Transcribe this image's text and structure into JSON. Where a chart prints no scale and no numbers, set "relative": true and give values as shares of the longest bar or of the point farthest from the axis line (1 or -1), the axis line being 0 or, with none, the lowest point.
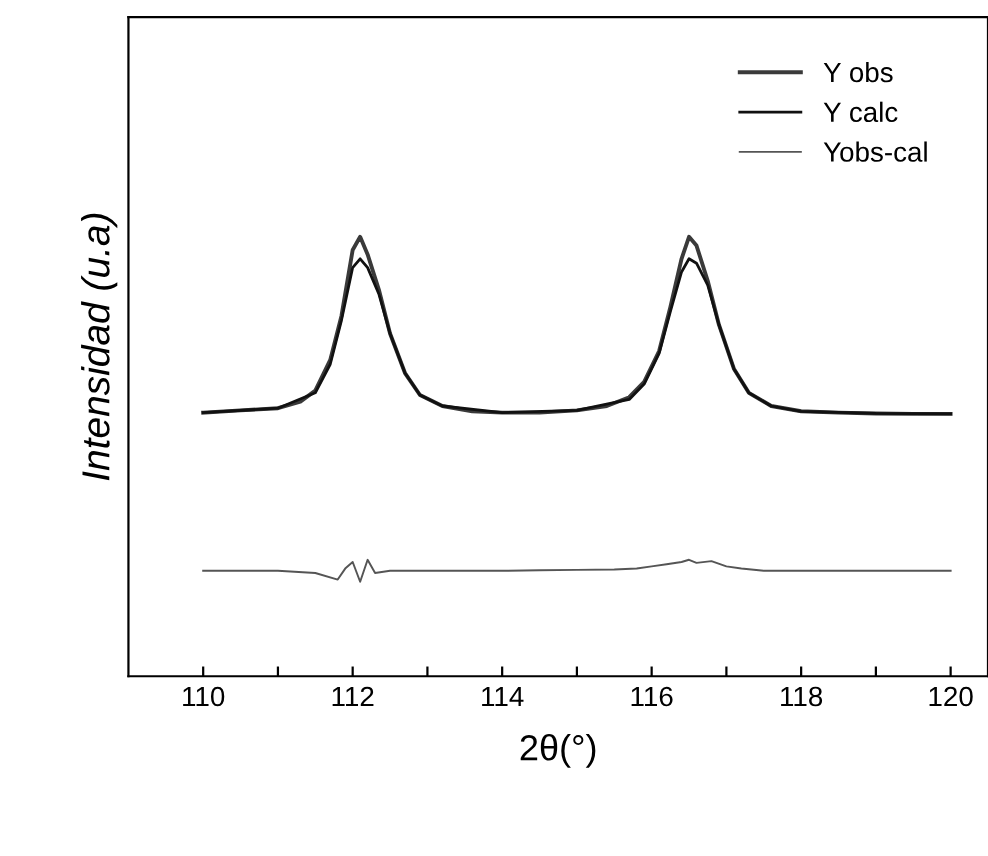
{
  "chart_data": {
    "type": "line",
    "xlabel": "2θ(°)",
    "ylabel": "Intensidad (u.a)",
    "relative": true,
    "xlim": [
      109,
      120.5
    ],
    "xticks": [
      110,
      {
        "value": 111,
        "label": null
      },
      112,
      {
        "value": 113,
        "label": null
      },
      114,
      {
        "value": 115,
        "label": null
      },
      116,
      {
        "value": 117,
        "label": null
      },
      118,
      {
        "value": 119,
        "label": null
      },
      120
    ],
    "legend": "top right",
    "grid": false,
    "marker": "none",
    "line_style": "solid",
    "series": [
      {
        "name": "Y obs",
        "color": "#3a3a3a",
        "x": [
          110.0,
          110.5,
          111.0,
          111.3,
          111.5,
          111.7,
          111.85,
          112.0,
          112.1,
          112.2,
          112.35,
          112.5,
          112.7,
          112.9,
          113.2,
          113.6,
          114.0,
          114.5,
          115.0,
          115.4,
          115.7,
          115.9,
          116.1,
          116.25,
          116.4,
          116.5,
          116.6,
          116.75,
          116.9,
          117.1,
          117.3,
          117.6,
          118.0,
          118.5,
          119.0,
          119.5,
          120.0
        ],
        "values": [
          0.6,
          0.605,
          0.61,
          0.625,
          0.65,
          0.72,
          0.82,
          0.97,
          1.0,
          0.96,
          0.88,
          0.78,
          0.69,
          0.64,
          0.615,
          0.603,
          0.6,
          0.6,
          0.605,
          0.615,
          0.635,
          0.67,
          0.74,
          0.84,
          0.95,
          1.0,
          0.98,
          0.9,
          0.8,
          0.7,
          0.645,
          0.615,
          0.603,
          0.6,
          0.598,
          0.597,
          0.597
        ]
      },
      {
        "name": "Y calc",
        "color": "#111111",
        "x": [
          110.0,
          111.0,
          111.5,
          111.7,
          111.85,
          112.0,
          112.1,
          112.2,
          112.35,
          112.5,
          112.7,
          112.9,
          113.2,
          114.0,
          115.0,
          115.7,
          115.9,
          116.1,
          116.25,
          116.4,
          116.5,
          116.6,
          116.75,
          116.9,
          117.1,
          117.3,
          117.6,
          118.0,
          119.0,
          120.0
        ],
        "values": [
          0.6,
          0.61,
          0.645,
          0.71,
          0.81,
          0.93,
          0.95,
          0.93,
          0.87,
          0.78,
          0.69,
          0.64,
          0.615,
          0.6,
          0.605,
          0.63,
          0.665,
          0.735,
          0.83,
          0.92,
          0.95,
          0.94,
          0.89,
          0.8,
          0.7,
          0.645,
          0.615,
          0.603,
          0.598,
          0.597
        ]
      },
      {
        "name": "Yobs-cal",
        "color": "#555555",
        "x": [
          110.0,
          110.5,
          111.0,
          111.5,
          111.8,
          111.9,
          112.0,
          112.1,
          112.2,
          112.3,
          112.5,
          113.0,
          113.5,
          114.0,
          114.5,
          115.0,
          115.5,
          115.8,
          116.0,
          116.2,
          116.4,
          116.5,
          116.6,
          116.8,
          117.0,
          117.2,
          117.5,
          118.0,
          118.5,
          119.0,
          119.5,
          120.0
        ],
        "values": [
          0.24,
          0.24,
          0.24,
          0.235,
          0.22,
          0.245,
          0.26,
          0.215,
          0.265,
          0.235,
          0.24,
          0.24,
          0.24,
          0.24,
          0.241,
          0.242,
          0.243,
          0.245,
          0.25,
          0.255,
          0.26,
          0.265,
          0.258,
          0.262,
          0.25,
          0.245,
          0.24,
          0.24,
          0.24,
          0.24,
          0.24,
          0.24
        ]
      }
    ]
  }
}
